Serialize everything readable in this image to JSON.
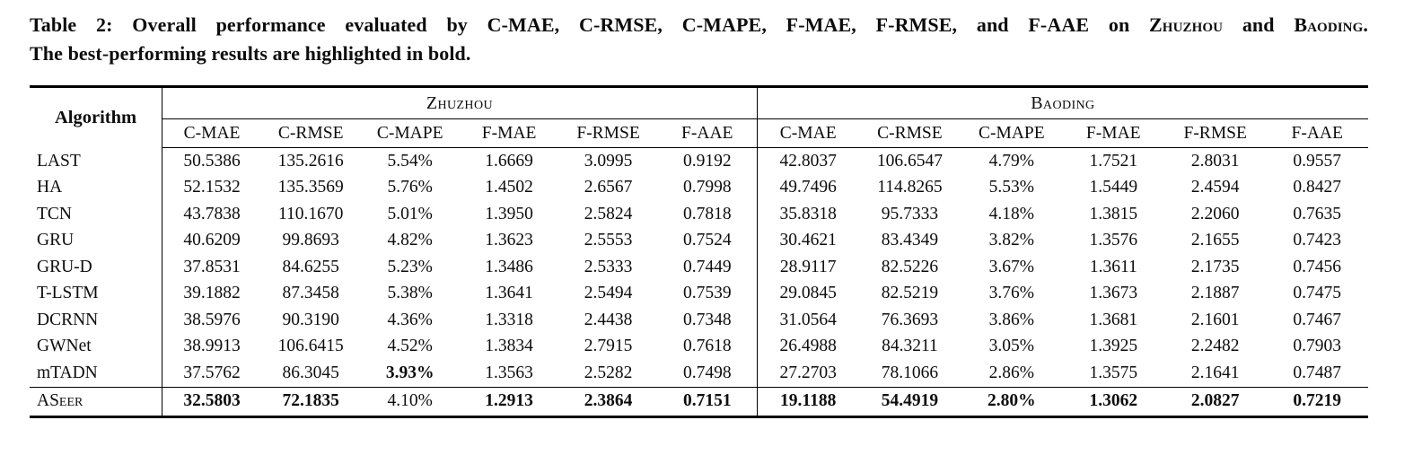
{
  "caption": {
    "parts": [
      "Table 2: Overall performance evaluated by C-MAE, C-RMSE, C-MAPE, F-MAE, F-RMSE, and F-AAE on ",
      "Zhuzhou",
      " and ",
      "Baoding",
      "."
    ],
    "line2": "The best-performing results are highlighted in bold."
  },
  "table": {
    "algorithm_header": "Algorithm",
    "groups": [
      {
        "label": "Zhuzhou",
        "metrics": [
          "C-MAE",
          "C-RMSE",
          "C-MAPE",
          "F-MAE",
          "F-RMSE",
          "F-AAE"
        ]
      },
      {
        "label": "Baoding",
        "metrics": [
          "C-MAE",
          "C-RMSE",
          "C-MAPE",
          "F-MAE",
          "F-RMSE",
          "F-AAE"
        ]
      }
    ],
    "rows": [
      {
        "algorithm": "LAST",
        "zhuzhou": [
          "50.5386",
          "135.2616",
          "5.54%",
          "1.6669",
          "3.0995",
          "0.9192"
        ],
        "baoding": [
          "42.8037",
          "106.6547",
          "4.79%",
          "1.7521",
          "2.8031",
          "0.9557"
        ]
      },
      {
        "algorithm": "HA",
        "zhuzhou": [
          "52.1532",
          "135.3569",
          "5.76%",
          "1.4502",
          "2.6567",
          "0.7998"
        ],
        "baoding": [
          "49.7496",
          "114.8265",
          "5.53%",
          "1.5449",
          "2.4594",
          "0.8427"
        ]
      },
      {
        "algorithm": "TCN",
        "zhuzhou": [
          "43.7838",
          "110.1670",
          "5.01%",
          "1.3950",
          "2.5824",
          "0.7818"
        ],
        "baoding": [
          "35.8318",
          "95.7333",
          "4.18%",
          "1.3815",
          "2.2060",
          "0.7635"
        ]
      },
      {
        "algorithm": "GRU",
        "zhuzhou": [
          "40.6209",
          "99.8693",
          "4.82%",
          "1.3623",
          "2.5553",
          "0.7524"
        ],
        "baoding": [
          "30.4621",
          "83.4349",
          "3.82%",
          "1.3576",
          "2.1655",
          "0.7423"
        ]
      },
      {
        "algorithm": "GRU-D",
        "zhuzhou": [
          "37.8531",
          "84.6255",
          "5.23%",
          "1.3486",
          "2.5333",
          "0.7449"
        ],
        "baoding": [
          "28.9117",
          "82.5226",
          "3.67%",
          "1.3611",
          "2.1735",
          "0.7456"
        ]
      },
      {
        "algorithm": "T-LSTM",
        "zhuzhou": [
          "39.1882",
          "87.3458",
          "5.38%",
          "1.3641",
          "2.5494",
          "0.7539"
        ],
        "baoding": [
          "29.0845",
          "82.5219",
          "3.76%",
          "1.3673",
          "2.1887",
          "0.7475"
        ]
      },
      {
        "algorithm": "DCRNN",
        "zhuzhou": [
          "38.5976",
          "90.3190",
          "4.36%",
          "1.3318",
          "2.4438",
          "0.7348"
        ],
        "baoding": [
          "31.0564",
          "76.3693",
          "3.86%",
          "1.3681",
          "2.1601",
          "0.7467"
        ]
      },
      {
        "algorithm": "GWNet",
        "zhuzhou": [
          "38.9913",
          "106.6415",
          "4.52%",
          "1.3834",
          "2.7915",
          "0.7618"
        ],
        "baoding": [
          "26.4988",
          "84.3211",
          "3.05%",
          "1.3925",
          "2.2482",
          "0.7903"
        ]
      },
      {
        "algorithm": "mTADN",
        "zhuzhou": [
          "37.5762",
          "86.3045",
          "3.93%",
          "1.3563",
          "2.5282",
          "0.7498"
        ],
        "zhuzhou_bold": [
          false,
          false,
          true,
          false,
          false,
          false
        ],
        "baoding": [
          "27.2703",
          "78.1066",
          "2.86%",
          "1.3575",
          "2.1641",
          "0.7487"
        ]
      },
      {
        "algorithm": "ASeer",
        "smallcaps": true,
        "zhuzhou": [
          "32.5803",
          "72.1835",
          "4.10%",
          "1.2913",
          "2.3864",
          "0.7151"
        ],
        "zhuzhou_bold": [
          true,
          true,
          false,
          true,
          true,
          true
        ],
        "baoding": [
          "19.1188",
          "54.4919",
          "2.80%",
          "1.3062",
          "2.0827",
          "0.7219"
        ],
        "baoding_bold": [
          true,
          true,
          true,
          true,
          true,
          true
        ]
      }
    ]
  }
}
